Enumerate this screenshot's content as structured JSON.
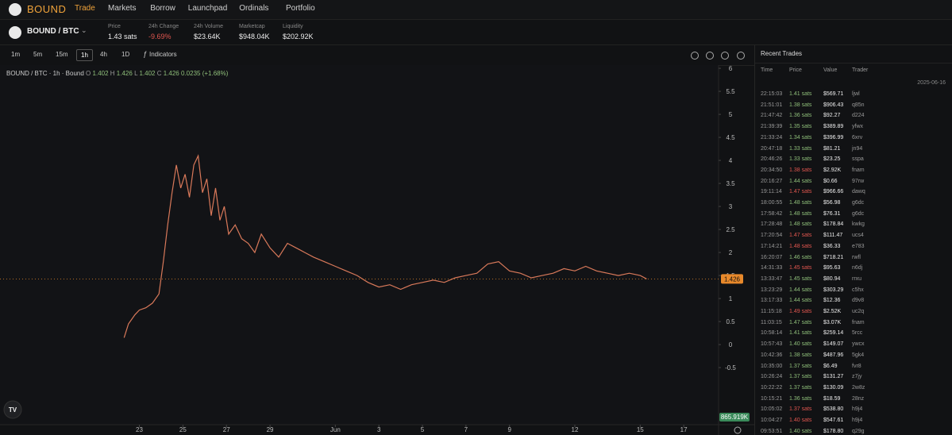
{
  "nav": {
    "brand": "BOUND",
    "items": [
      "Trade",
      "Markets",
      "Borrow",
      "Launchpad",
      "Ordinals",
      "Portfolio"
    ],
    "active": 0
  },
  "pair": {
    "name": "BOUND / BTC",
    "stats": [
      {
        "label": "Price",
        "value": "1.43 sats"
      },
      {
        "label": "24h Change",
        "value": "-9.69%"
      },
      {
        "label": "24h Volume",
        "value": "$23.64K"
      },
      {
        "label": "Marketcap",
        "value": "$948.04K"
      },
      {
        "label": "Liquidity",
        "value": "$202.92K"
      }
    ]
  },
  "toolbar": {
    "intervals": [
      "1m",
      "5m",
      "15m",
      "1h",
      "4h",
      "1D"
    ],
    "active": 3,
    "indicators": "Indicators"
  },
  "chart_data": {
    "type": "line",
    "legend": {
      "title": "BOUND / BTC · 1h · Bound",
      "items": [
        [
          "O",
          "1.402"
        ],
        [
          "H",
          "1.426"
        ],
        [
          "L",
          "1.402"
        ],
        [
          "C",
          "1.426"
        ]
      ],
      "change": "0.0235 (+1.68%)"
    },
    "x": [
      22.3,
      22.5,
      22.8,
      23.0,
      23.3,
      23.6,
      23.9,
      24.1,
      24.3,
      24.5,
      24.7,
      24.9,
      25.1,
      25.3,
      25.5,
      25.7,
      25.9,
      26.1,
      26.3,
      26.5,
      26.7,
      26.9,
      27.1,
      27.4,
      27.7,
      28.0,
      28.3,
      28.6,
      29.0,
      29.4,
      29.8,
      30.2,
      30.6,
      31.0,
      31.5,
      32.0,
      32.5,
      33.0,
      33.5,
      34.0,
      34.5,
      35.0,
      35.5,
      36.0,
      36.5,
      37.0,
      37.5,
      38.0,
      38.5,
      39.0,
      39.5,
      40.0,
      40.5,
      41.0,
      41.5,
      42.0,
      42.5,
      43.0,
      43.5,
      44.0,
      44.5,
      45.0,
      45.5,
      46.0,
      46.3
    ],
    "series": [
      {
        "name": "BOUND / BTC",
        "color": "#d9795a",
        "values": [
          0.15,
          0.45,
          0.65,
          0.75,
          0.8,
          0.9,
          1.1,
          1.8,
          2.6,
          3.3,
          3.9,
          3.4,
          3.7,
          3.2,
          3.9,
          4.1,
          3.3,
          3.6,
          2.8,
          3.4,
          2.7,
          3.0,
          2.4,
          2.6,
          2.3,
          2.2,
          2.0,
          2.4,
          2.1,
          1.9,
          2.2,
          2.1,
          2.0,
          1.9,
          1.8,
          1.7,
          1.6,
          1.5,
          1.35,
          1.25,
          1.3,
          1.2,
          1.3,
          1.35,
          1.4,
          1.35,
          1.45,
          1.5,
          1.55,
          1.75,
          1.8,
          1.6,
          1.55,
          1.45,
          1.5,
          1.55,
          1.65,
          1.6,
          1.7,
          1.6,
          1.55,
          1.5,
          1.55,
          1.5,
          1.426
        ]
      }
    ],
    "last_price_label": "1.426",
    "last_price_color": "#e8892b",
    "volume_label": "865.919K",
    "volume_color": "#3a8a5a",
    "xlim": [
      16.6,
      49.6
    ],
    "xticks": [
      {
        "value": 23,
        "label": "23"
      },
      {
        "value": 25,
        "label": "25"
      },
      {
        "value": 27,
        "label": "27"
      },
      {
        "value": 29,
        "label": "29"
      },
      {
        "value": 32,
        "label": "Jun"
      },
      {
        "value": 34,
        "label": "3"
      },
      {
        "value": 36,
        "label": "5"
      },
      {
        "value": 38,
        "label": "7"
      },
      {
        "value": 40,
        "label": "9"
      },
      {
        "value": 43,
        "label": "12"
      },
      {
        "value": 46,
        "label": "15"
      },
      {
        "value": 48,
        "label": "17"
      }
    ],
    "ylim": [
      -1.74,
      6.07
    ],
    "yticks": [
      6,
      5.5,
      5,
      4.5,
      4,
      3.5,
      3,
      2.5,
      2,
      1.5,
      1,
      0.5,
      0,
      -0.5
    ],
    "grid": false
  },
  "trades": {
    "title": "Recent Trades",
    "columns": [
      "Time",
      "Price",
      "Value",
      "Trader"
    ],
    "date": "2025-06-16",
    "buy_color": "#8fbf7a",
    "sell_color": "#e0564f",
    "rows": [
      [
        "22:15:03",
        "1.41 sats",
        "$569.71",
        "ljwl"
      ],
      [
        "21:51:01",
        "1.38 sats",
        "$906.43",
        "q85n"
      ],
      [
        "21:47:42",
        "1.36 sats",
        "$92.27",
        "d224"
      ],
      [
        "21:39:39",
        "1.35 sats",
        "$389.89",
        "yfwx"
      ],
      [
        "21:33:24",
        "1.34 sats",
        "$396.99",
        "6xrv"
      ],
      [
        "20:47:18",
        "1.33 sats",
        "$81.21",
        "jn94"
      ],
      [
        "20:46:26",
        "1.33 sats",
        "$23.25",
        "sspa"
      ],
      [
        "20:34:50",
        "1.38 sats",
        "$2.92K",
        "fnam"
      ],
      [
        "20:16:27",
        "1.44 sats",
        "$0.66",
        "97rw"
      ],
      [
        "19:11:14",
        "1.47 sats",
        "$966.66",
        "dawq"
      ],
      [
        "18:00:55",
        "1.48 sats",
        "$56.98",
        "g6dc"
      ],
      [
        "17:58:42",
        "1.48 sats",
        "$76.31",
        "g6dc"
      ],
      [
        "17:28:48",
        "1.48 sats",
        "$178.84",
        "kwkg"
      ],
      [
        "17:20:54",
        "1.47 sats",
        "$111.47",
        "ucs4"
      ],
      [
        "17:14:21",
        "1.48 sats",
        "$36.33",
        "e783"
      ],
      [
        "16:20:07",
        "1.46 sats",
        "$718.21",
        "rwfl"
      ],
      [
        "14:31:33",
        "1.45 sats",
        "$95.63",
        "n6dj"
      ],
      [
        "13:33:47",
        "1.45 sats",
        "$80.94",
        "rrxu"
      ],
      [
        "13:23:29",
        "1.44 sats",
        "$303.29",
        "c5hx"
      ],
      [
        "13:17:33",
        "1.44 sats",
        "$12.36",
        "d9v8"
      ],
      [
        "11:15:18",
        "1.49 sats",
        "$2.52K",
        "uc2q"
      ],
      [
        "11:03:15",
        "1.47 sats",
        "$3.07K",
        "fnam"
      ],
      [
        "10:58:14",
        "1.41 sats",
        "$259.14",
        "5rcc"
      ],
      [
        "10:57:43",
        "1.40 sats",
        "$149.07",
        "ywcx"
      ],
      [
        "10:42:36",
        "1.38 sats",
        "$487.96",
        "5gk4"
      ],
      [
        "10:35:00",
        "1.37 sats",
        "$6.49",
        "fvr8"
      ],
      [
        "10:26:24",
        "1.37 sats",
        "$131.27",
        "z7jy"
      ],
      [
        "10:22:22",
        "1.37 sats",
        "$130.09",
        "2w8z"
      ],
      [
        "10:15:21",
        "1.36 sats",
        "$18.59",
        "28nz"
      ],
      [
        "10:05:02",
        "1.37 sats",
        "$538.80",
        "h9j4"
      ],
      [
        "10:04:27",
        "1.40 sats",
        "$547.61",
        "h9j4"
      ],
      [
        "09:53:51",
        "1.40 sats",
        "$178.80",
        "q29g"
      ]
    ],
    "sides": [
      "buy",
      "buy",
      "buy",
      "buy",
      "buy",
      "buy",
      "buy",
      "sell",
      "buy",
      "sell",
      "buy",
      "buy",
      "buy",
      "sell",
      "sell",
      "buy",
      "sell",
      "buy",
      "buy",
      "buy",
      "sell",
      "buy",
      "buy",
      "buy",
      "buy",
      "buy",
      "buy",
      "buy",
      "buy",
      "sell",
      "sell",
      "buy"
    ]
  }
}
